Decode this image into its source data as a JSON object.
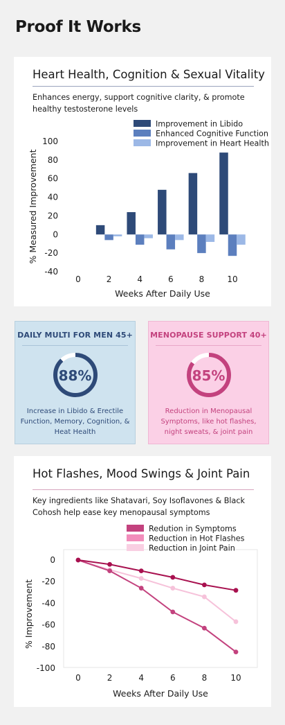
{
  "page": {
    "title": "Proof It Works"
  },
  "card1": {
    "title": "Heart Health, Cognition & Sexual Vitality",
    "subtitle": "Enhances energy, support cognitive clarity, & promote healthy testosterone levels"
  },
  "card2": {
    "title": "Hot Flashes, Mood Swings & Joint Pain",
    "subtitle": "Key ingredients like Shatavari, Soy Isoflavones & Black Cohosh help ease key menopausal symptoms"
  },
  "stats": [
    {
      "title": "DAILY MULTI FOR MEN 45+",
      "value": "88%",
      "percent": 88,
      "description": "Increase in Libido & Erectile Function, Memory, Cognition, & Heat Health",
      "color": "#2e4a78"
    },
    {
      "title": "MENOPAUSE SUPPORT 40+",
      "value": "85%",
      "percent": 85,
      "description": "Reduction in Menopausal Symptoms, like hot flashes, night sweats, & joint pain",
      "color": "#c3427e"
    }
  ],
  "chart_data": [
    {
      "type": "bar",
      "title": "Heart Health, Cognition & Sexual Vitality",
      "subtitle": "Enhances energy, support cognitive clarity, & promote healthy testosterone levels",
      "xlabel": "Weeks After Daily Use",
      "ylabel": "% Measured Improvement",
      "x": [
        0,
        2,
        4,
        6,
        8,
        10
      ],
      "xticks": [
        "0",
        "2",
        "4",
        "6",
        "8",
        "10"
      ],
      "ylim": [
        -40,
        100
      ],
      "yticks": [
        "100",
        "80",
        "60",
        "40",
        "20",
        "0",
        "-20",
        "-40"
      ],
      "grid": false,
      "legend": "top-right",
      "series": [
        {
          "name": "Improvement in Libido",
          "color": "#2e4a78",
          "values": [
            0,
            10,
            24,
            48,
            66,
            88
          ]
        },
        {
          "name": "Enhanced Cognitive Function",
          "color": "#5c7fbe",
          "values": [
            0,
            -6,
            -11,
            -16,
            -20,
            -23
          ]
        },
        {
          "name": "Improvement in Heart Health",
          "color": "#9cb8e6",
          "values": [
            0,
            -2,
            -4,
            -6,
            -8,
            -11
          ]
        }
      ]
    },
    {
      "type": "line",
      "title": "Hot Flashes, Mood Swings & Joint Pain",
      "subtitle": "Key ingredients like Shatavari, Soy Isoflavones & Black Cohosh help ease key menopausal symptoms",
      "xlabel": "Weeks After Daily Use",
      "ylabel": "% Improvement",
      "x": [
        0,
        2,
        4,
        6,
        8,
        10
      ],
      "xticks": [
        "0",
        "2",
        "4",
        "6",
        "8",
        "10"
      ],
      "ylim": [
        -100,
        0
      ],
      "yticks": [
        "0",
        "-20",
        "-40",
        "-60",
        "-80",
        "-100"
      ],
      "grid": false,
      "legend": "top-right",
      "series": [
        {
          "name": "Redution in Symptoms",
          "color": "#c3427e",
          "values": [
            0,
            -10,
            -26,
            -48,
            -63,
            -85
          ]
        },
        {
          "name": "Reduction in Hot Flashes",
          "color": "#a8114f",
          "values": [
            0,
            -4,
            -10,
            -16,
            -23,
            -28
          ]
        },
        {
          "name": "Reduction in Joint Pain",
          "color": "#f6c2da",
          "values": [
            0,
            -9,
            -17,
            -26,
            -34,
            -57
          ]
        }
      ],
      "legend_order": [
        "Redution in Symptoms",
        "Reduction in Hot Flashes",
        "Reduction in Joint Pain"
      ],
      "legend_colors": [
        "#c3427e",
        "#f28dbb",
        "#f9cfe2"
      ]
    }
  ]
}
